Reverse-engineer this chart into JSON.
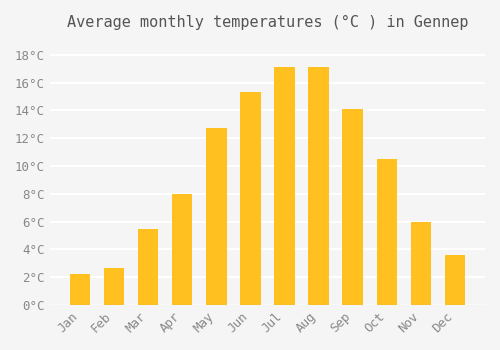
{
  "title": "Average monthly temperatures (°C ) in Gennep",
  "months": [
    "Jan",
    "Feb",
    "Mar",
    "Apr",
    "May",
    "Jun",
    "Jul",
    "Aug",
    "Sep",
    "Oct",
    "Nov",
    "Dec"
  ],
  "values": [
    2.2,
    2.7,
    5.5,
    8.0,
    12.7,
    15.3,
    17.1,
    17.1,
    14.1,
    10.5,
    6.0,
    3.6
  ],
  "bar_color_top": "#FFC020",
  "bar_color_bottom": "#FFB000",
  "background_color": "#F5F5F5",
  "grid_color": "#FFFFFF",
  "ylim": [
    0,
    19
  ],
  "yticks": [
    0,
    2,
    4,
    6,
    8,
    10,
    12,
    14,
    16,
    18
  ],
  "ytick_labels": [
    "0°C",
    "2°C",
    "4°C",
    "6°C",
    "8°C",
    "10°C",
    "12°C",
    "14°C",
    "16°C",
    "18°C"
  ],
  "title_fontsize": 11,
  "tick_fontsize": 9,
  "bar_width": 0.6,
  "font_family": "monospace"
}
